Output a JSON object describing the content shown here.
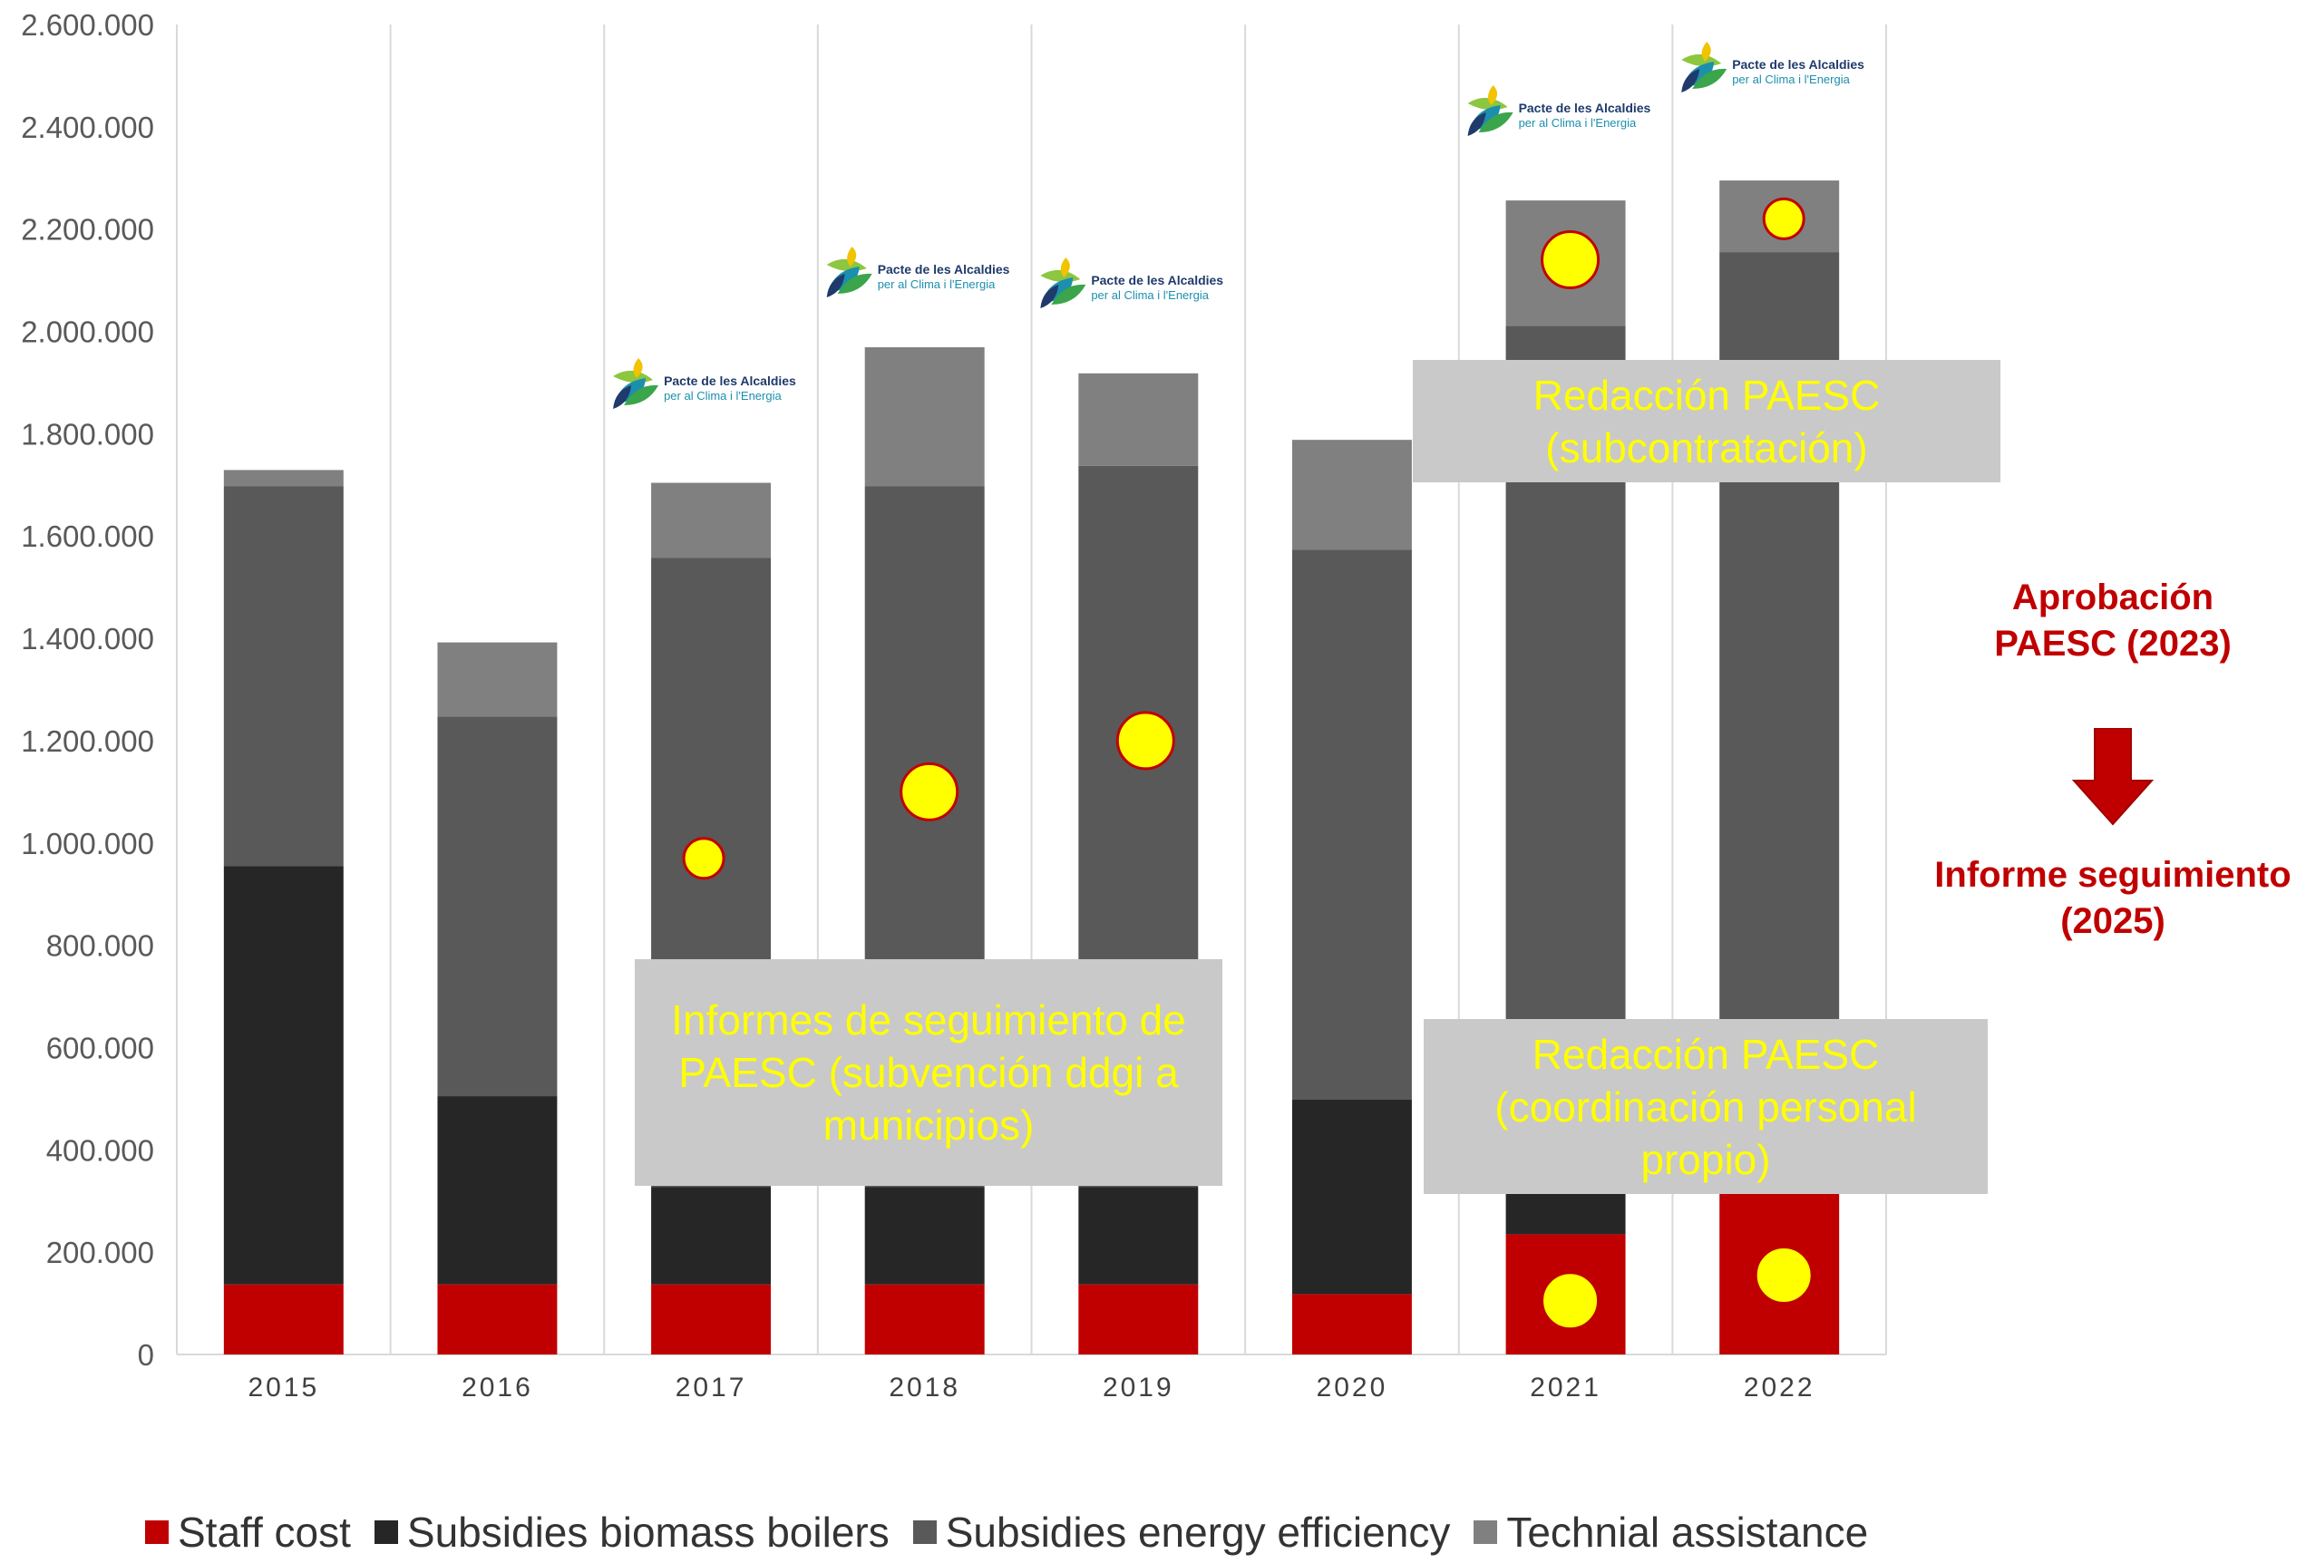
{
  "chart_data": {
    "type": "bar",
    "stacked": true,
    "categories": [
      "2015",
      "2016",
      "2017",
      "2018",
      "2019",
      "2020",
      "2021",
      "2022"
    ],
    "ylim": [
      0,
      2600000
    ],
    "y_ticks": [
      0,
      200000,
      400000,
      600000,
      800000,
      1000000,
      1200000,
      1400000,
      1600000,
      1800000,
      2000000,
      2200000,
      2400000,
      2600000
    ],
    "y_tick_labels": [
      "0",
      "200.000",
      "400.000",
      "600.000",
      "800.000",
      "1.000.000",
      "1.200.000",
      "1.400.000",
      "1.600.000",
      "1.800.000",
      "2.000.000",
      "2.200.000",
      "2.400.000",
      "2.600.000"
    ],
    "grid": "vertical separators between categories",
    "legend_position": "bottom",
    "series": [
      {
        "name": "Staff cost",
        "color": "#c00000",
        "values": [
          137000,
          137000,
          137000,
          137000,
          137000,
          118000,
          235000,
          315000
        ]
      },
      {
        "name": "Subsidies biomass boilers",
        "color": "#262626",
        "values": [
          818000,
          368000,
          190000,
          190000,
          190000,
          380000,
          100000,
          5000
        ]
      },
      {
        "name": "Subsidies energy efficiency",
        "color": "#595959",
        "values": [
          742000,
          742000,
          1230000,
          1370000,
          1410000,
          1075000,
          1676000,
          1835000
        ]
      },
      {
        "name": "Technial assistance",
        "color": "#808080",
        "values": [
          32000,
          145000,
          147000,
          272000,
          181000,
          215000,
          245000,
          140000
        ]
      }
    ],
    "markers": [
      {
        "category": "2017",
        "y": 970000,
        "size": "small"
      },
      {
        "category": "2018",
        "y": 1100000,
        "size": "large"
      },
      {
        "category": "2019",
        "y": 1200000,
        "size": "large"
      },
      {
        "category": "2021",
        "y": 2140000,
        "size": "large"
      },
      {
        "category": "2021",
        "y": 105000,
        "size": "large"
      },
      {
        "category": "2022",
        "y": 2220000,
        "size": "small"
      },
      {
        "category": "2022",
        "y": 155000,
        "size": "large"
      }
    ],
    "marker_color": "#ffff00",
    "marker_stroke": "#c00000",
    "logo_categories": [
      "2017",
      "2018",
      "2019",
      "2021",
      "2022"
    ]
  },
  "logo": {
    "line1": "Pacte de les Alcaldies",
    "line2": "per al Clima i l'Energia",
    "icon": "leaf-logo-icon"
  },
  "annotations": {
    "box_informes": "Informes de seguimiento de PAESC (subvención ddgi a municipios)",
    "box_redaccion_sub": "Redacción PAESC (subcontratación)",
    "box_redaccion_coord": "Redacción PAESC (coordinación personal propio)",
    "note_aprobacion": "Aprobación PAESC (2023)",
    "note_informe": "Informe seguimiento (2025)",
    "arrow_icon": "down-arrow-icon",
    "box_color": "#c9c9c9",
    "box_text_color": "#ffff00",
    "note_color": "#c00000"
  },
  "legend": {
    "items": [
      "Staff cost",
      "Subsidies biomass boilers",
      "Subsidies energy efficiency",
      "Technial assistance"
    ]
  }
}
